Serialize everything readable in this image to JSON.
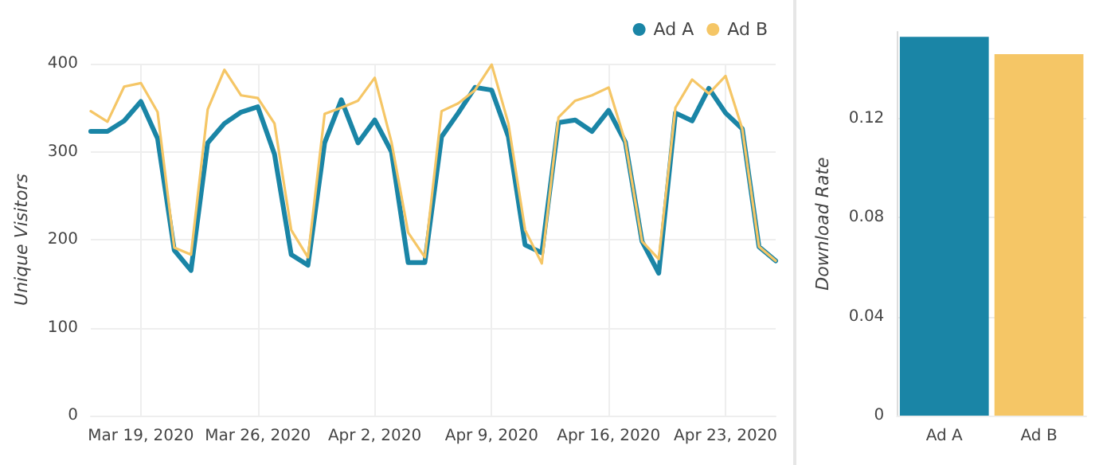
{
  "chart_data": [
    {
      "type": "line",
      "ylabel": "Unique Visitors",
      "x": [
        "2020-03-16",
        "2020-03-17",
        "2020-03-18",
        "2020-03-19",
        "2020-03-20",
        "2020-03-21",
        "2020-03-22",
        "2020-03-23",
        "2020-03-24",
        "2020-03-25",
        "2020-03-26",
        "2020-03-27",
        "2020-03-28",
        "2020-03-29",
        "2020-03-30",
        "2020-03-31",
        "2020-04-01",
        "2020-04-02",
        "2020-04-03",
        "2020-04-04",
        "2020-04-05",
        "2020-04-06",
        "2020-04-07",
        "2020-04-08",
        "2020-04-09",
        "2020-04-10",
        "2020-04-11",
        "2020-04-12",
        "2020-04-13",
        "2020-04-14",
        "2020-04-15",
        "2020-04-16",
        "2020-04-17",
        "2020-04-18",
        "2020-04-19",
        "2020-04-20",
        "2020-04-21",
        "2020-04-22",
        "2020-04-23",
        "2020-04-24",
        "2020-04-25",
        "2020-04-26"
      ],
      "series": [
        {
          "name": "Ad A",
          "color": "#1a85a6",
          "values": [
            323,
            323,
            335,
            357,
            315,
            188,
            165,
            310,
            332,
            345,
            351,
            297,
            183,
            171,
            310,
            359,
            310,
            336,
            300,
            174,
            174,
            317,
            344,
            373,
            370,
            317,
            194,
            185,
            333,
            336,
            323,
            347,
            311,
            198,
            162,
            344,
            335,
            372,
            344,
            326,
            192,
            176
          ]
        },
        {
          "name": "Ad B",
          "color": "#f5c666",
          "values": [
            346,
            334,
            374,
            378,
            345,
            191,
            183,
            348,
            393,
            364,
            361,
            332,
            211,
            180,
            343,
            350,
            358,
            384,
            311,
            208,
            180,
            346,
            355,
            370,
            399,
            332,
            211,
            173,
            339,
            358,
            364,
            373,
            311,
            198,
            178,
            350,
            382,
            366,
            386,
            326,
            192,
            176
          ]
        }
      ],
      "xlim": [
        "2020-03-16",
        "2020-04-26"
      ],
      "xticks": [
        {
          "value": "2020-03-19",
          "label": "Mar 19, 2020"
        },
        {
          "value": "2020-03-26",
          "label": "Mar 26, 2020"
        },
        {
          "value": "2020-04-02",
          "label": "Apr 2, 2020"
        },
        {
          "value": "2020-04-09",
          "label": "Apr 9, 2020"
        },
        {
          "value": "2020-04-16",
          "label": "Apr 16, 2020"
        },
        {
          "value": "2020-04-23",
          "label": "Apr 23, 2020"
        }
      ],
      "ylim": [
        0,
        400
      ],
      "yticks": [
        0,
        100,
        200,
        300,
        400
      ],
      "grid": true,
      "legend": "top right",
      "marker": "none",
      "line_style": "solid"
    },
    {
      "type": "bar",
      "ylabel": "Download Rate",
      "categories": [
        "Ad A",
        "Ad B"
      ],
      "values": [
        0.153,
        0.146
      ],
      "colors": [
        "#1a85a6",
        "#f5c666"
      ],
      "ylim": [
        0,
        0.155
      ],
      "yticks": [
        0,
        0.04,
        0.08,
        0.12
      ],
      "grid": "y"
    }
  ]
}
